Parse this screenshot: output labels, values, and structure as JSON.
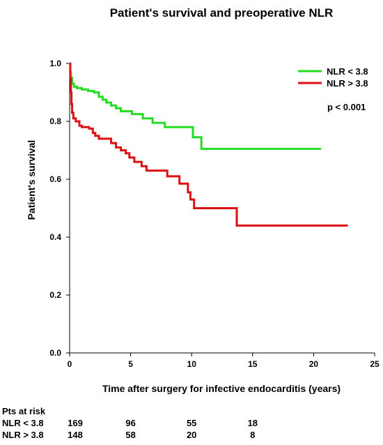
{
  "chart_data": {
    "type": "line",
    "step": true,
    "title": "Patient's survival and preoperative NLR",
    "xlabel": "Time after surgery for infective endocarditis (years)",
    "ylabel": "Patient's survival",
    "xlim": [
      0,
      25
    ],
    "ylim": [
      0,
      1.0
    ],
    "xticks": [
      0,
      5,
      10,
      15,
      20,
      25
    ],
    "yticks": [
      "0.0",
      "0.2",
      "0.4",
      "0.6",
      "0.8",
      "1.0"
    ],
    "grid": false,
    "legend_position": "top-right",
    "annotation": "p < 0.001",
    "series": [
      {
        "name": "NLR < 3.8",
        "color": "#22dd22",
        "points": [
          [
            0,
            1.0
          ],
          [
            0.05,
            0.97
          ],
          [
            0.1,
            0.95
          ],
          [
            0.2,
            0.93
          ],
          [
            0.35,
            0.92
          ],
          [
            0.6,
            0.915
          ],
          [
            1.0,
            0.91
          ],
          [
            1.5,
            0.905
          ],
          [
            2.0,
            0.9
          ],
          [
            2.4,
            0.885
          ],
          [
            2.7,
            0.875
          ],
          [
            3.0,
            0.865
          ],
          [
            3.4,
            0.855
          ],
          [
            3.8,
            0.845
          ],
          [
            4.2,
            0.835
          ],
          [
            5.1,
            0.825
          ],
          [
            6.0,
            0.81
          ],
          [
            6.8,
            0.795
          ],
          [
            7.8,
            0.78
          ],
          [
            9.9,
            0.78
          ],
          [
            10.1,
            0.745
          ],
          [
            10.7,
            0.745
          ],
          [
            10.8,
            0.705
          ],
          [
            20.6,
            0.705
          ]
        ]
      },
      {
        "name": "NLR > 3.8",
        "color": "#dd1111",
        "points": [
          [
            0,
            1.0
          ],
          [
            0.05,
            0.95
          ],
          [
            0.1,
            0.9
          ],
          [
            0.15,
            0.86
          ],
          [
            0.2,
            0.83
          ],
          [
            0.3,
            0.81
          ],
          [
            0.5,
            0.8
          ],
          [
            0.8,
            0.785
          ],
          [
            1.0,
            0.78
          ],
          [
            1.6,
            0.775
          ],
          [
            1.9,
            0.76
          ],
          [
            2.1,
            0.75
          ],
          [
            2.4,
            0.74
          ],
          [
            3.1,
            0.74
          ],
          [
            3.4,
            0.725
          ],
          [
            3.8,
            0.71
          ],
          [
            4.2,
            0.7
          ],
          [
            4.6,
            0.69
          ],
          [
            4.9,
            0.675
          ],
          [
            5.3,
            0.66
          ],
          [
            5.9,
            0.645
          ],
          [
            6.3,
            0.63
          ],
          [
            7.9,
            0.63
          ],
          [
            8.0,
            0.61
          ],
          [
            8.9,
            0.61
          ],
          [
            9.0,
            0.585
          ],
          [
            9.6,
            0.585
          ],
          [
            9.7,
            0.555
          ],
          [
            9.9,
            0.53
          ],
          [
            10.2,
            0.5
          ],
          [
            13.6,
            0.5
          ],
          [
            13.7,
            0.44
          ],
          [
            22.8,
            0.44
          ]
        ]
      }
    ]
  },
  "risk_table": {
    "header": "Pts at risk",
    "times": [
      0,
      5,
      10,
      15
    ],
    "rows": [
      {
        "label": "NLR < 3.8",
        "values": [
          "169",
          "96",
          "55",
          "18"
        ]
      },
      {
        "label": "NLR > 3.8",
        "values": [
          "148",
          "58",
          "20",
          "8"
        ]
      }
    ]
  }
}
